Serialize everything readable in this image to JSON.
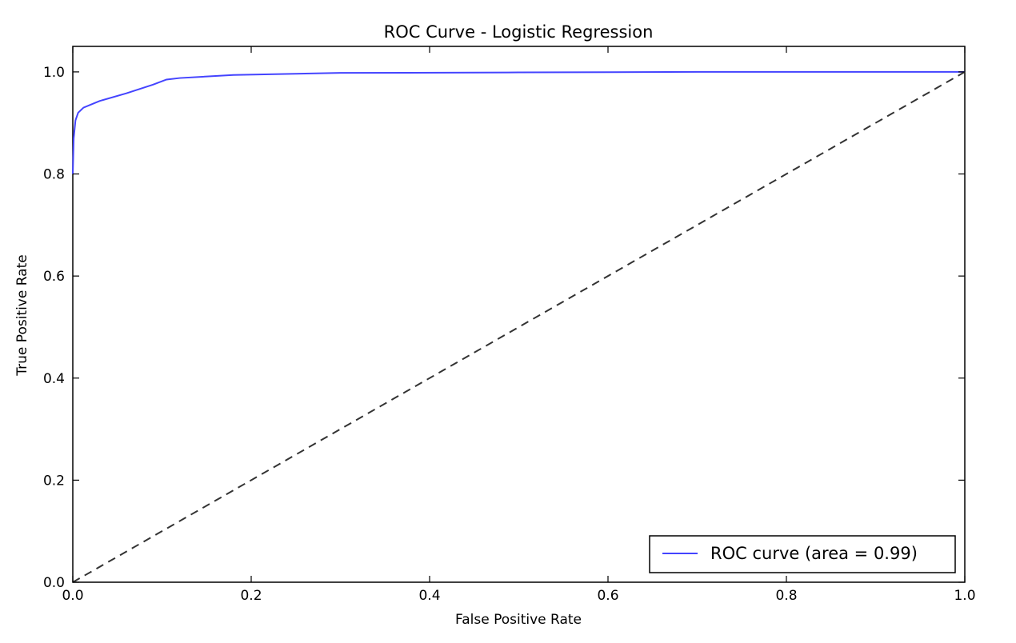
{
  "chart_data": {
    "type": "line",
    "title": "ROC Curve - Logistic Regression",
    "xlabel": "False Positive Rate",
    "ylabel": "True Positive Rate",
    "xlim": [
      0.0,
      1.0
    ],
    "ylim": [
      0.0,
      1.05
    ],
    "x_ticks": [
      "0.0",
      "0.2",
      "0.4",
      "0.6",
      "0.8",
      "1.0"
    ],
    "y_ticks": [
      "0.0",
      "0.2",
      "0.4",
      "0.6",
      "0.8",
      "1.0"
    ],
    "x_tick_values": [
      0.0,
      0.2,
      0.4,
      0.6,
      0.8,
      1.0
    ],
    "y_tick_values": [
      0.0,
      0.2,
      0.4,
      0.6,
      0.8,
      1.0
    ],
    "grid": false,
    "legend_position": "bottom-right",
    "series": [
      {
        "name": "ROC curve (area = 0.99)",
        "color": "#4444ff",
        "style": "solid",
        "x": [
          0.0,
          0.001,
          0.003,
          0.006,
          0.012,
          0.03,
          0.06,
          0.09,
          0.105,
          0.12,
          0.18,
          0.3,
          0.5,
          0.7,
          1.0
        ],
        "y": [
          0.8,
          0.87,
          0.905,
          0.92,
          0.93,
          0.943,
          0.958,
          0.975,
          0.985,
          0.988,
          0.994,
          0.998,
          0.999,
          1.0,
          1.0
        ]
      },
      {
        "color": "#333333",
        "style": "dashed",
        "x": [
          0.0,
          1.0
        ],
        "y": [
          0.0,
          1.0
        ]
      }
    ]
  }
}
